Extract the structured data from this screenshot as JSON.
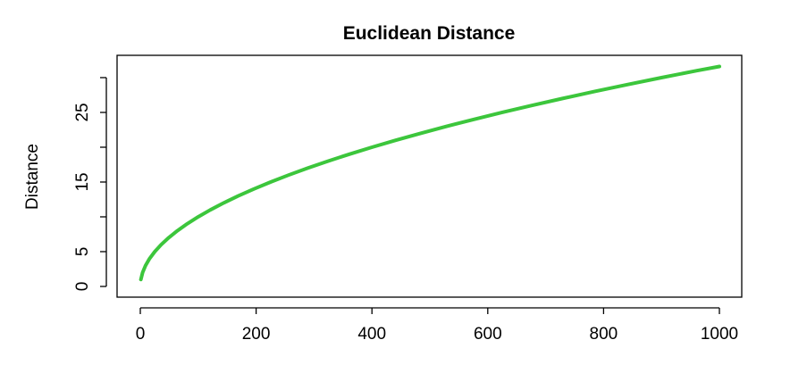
{
  "chart_data": {
    "type": "line",
    "title": "Euclidean Distance",
    "xlabel": "",
    "ylabel": "Distance",
    "xlim": [
      0,
      1000
    ],
    "ylim": [
      0,
      31.6
    ],
    "x_ticks": [
      0,
      200,
      400,
      600,
      800,
      1000
    ],
    "y_ticks": [
      0,
      5,
      10,
      15,
      20,
      25,
      30
    ],
    "y_tick_labels": [
      "0",
      "5",
      "",
      "15",
      "",
      "25",
      ""
    ],
    "grid": false,
    "series": [
      {
        "color": "#3cc63c",
        "x": [
          1,
          4,
          9,
          16,
          25,
          36,
          49,
          64,
          81,
          100,
          121,
          144,
          169,
          196,
          225,
          256,
          289,
          324,
          361,
          400,
          441,
          484,
          529,
          576,
          625,
          676,
          729,
          784,
          841,
          900,
          961,
          1000
        ],
        "y": [
          1,
          2,
          3,
          4,
          5,
          6,
          7,
          8,
          9,
          10,
          11,
          12,
          13,
          14,
          15,
          16,
          17,
          18,
          19,
          20,
          21,
          22,
          23,
          24,
          25,
          26,
          27,
          28,
          29,
          30,
          31,
          31.6
        ]
      }
    ]
  }
}
